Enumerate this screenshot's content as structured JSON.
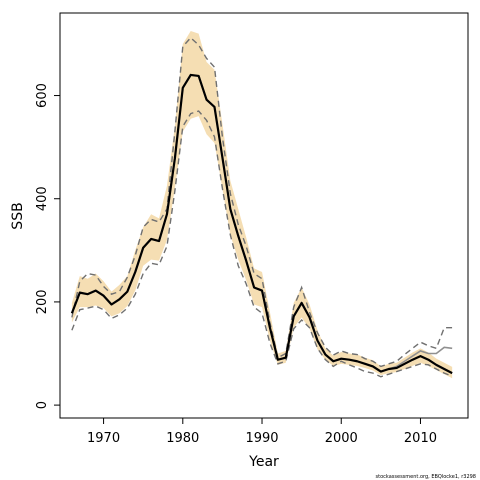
{
  "chart_data": {
    "type": "line",
    "title": "",
    "xlabel": "Year",
    "ylabel": "SSB",
    "xlim": [
      1964.5,
      2016
    ],
    "ylim": [
      -25,
      760
    ],
    "x_ticks": [
      1970,
      1980,
      1990,
      2000,
      2010
    ],
    "y_ticks": [
      0,
      200,
      400,
      600
    ],
    "x_tick_labels": [
      "1970",
      "1980",
      "1990",
      "2000",
      "2010"
    ],
    "y_tick_labels": [
      "0",
      "200",
      "400",
      "600"
    ],
    "grid": false,
    "x": [
      1966,
      1967,
      1968,
      1969,
      1970,
      1971,
      1972,
      1973,
      1974,
      1975,
      1976,
      1977,
      1978,
      1979,
      1980,
      1981,
      1982,
      1983,
      1984,
      1985,
      1986,
      1987,
      1988,
      1989,
      1990,
      1991,
      1992,
      1993,
      1994,
      1995,
      1996,
      1997,
      1998,
      1999,
      2000,
      2001,
      2002,
      2003,
      2004,
      2005,
      2006,
      2007,
      2008,
      2009,
      2010,
      2011,
      2012,
      2013,
      2014
    ],
    "series": [
      {
        "role": "estimate",
        "values": [
          178,
          218,
          215,
          222,
          212,
          195,
          205,
          220,
          258,
          305,
          322,
          318,
          370,
          478,
          615,
          640,
          638,
          592,
          578,
          480,
          380,
          328,
          280,
          228,
          222,
          150,
          88,
          92,
          172,
          198,
          170,
          125,
          98,
          85,
          90,
          88,
          85,
          80,
          75,
          65,
          70,
          72,
          80,
          88,
          95,
          88,
          78,
          70,
          62
        ]
      },
      {
        "role": "confidence-band",
        "lower": [
          160,
          190,
          190,
          193,
          188,
          172,
          178,
          192,
          222,
          270,
          282,
          280,
          320,
          420,
          530,
          555,
          560,
          525,
          508,
          420,
          330,
          282,
          242,
          195,
          190,
          125,
          78,
          82,
          150,
          170,
          148,
          108,
          88,
          76,
          80,
          78,
          76,
          72,
          67,
          58,
          62,
          64,
          70,
          76,
          82,
          76,
          68,
          60,
          52
        ],
        "upper": [
          198,
          250,
          245,
          255,
          240,
          220,
          233,
          250,
          300,
          345,
          370,
          362,
          425,
          540,
          700,
          725,
          720,
          665,
          650,
          545,
          435,
          380,
          325,
          265,
          258,
          180,
          100,
          105,
          198,
          228,
          195,
          145,
          110,
          96,
          103,
          100,
          98,
          92,
          87,
          75,
          80,
          82,
          92,
          102,
          110,
          102,
          90,
          82,
          74
        ]
      },
      {
        "role": "dashed-bound-lower",
        "values": [
          145,
          185,
          188,
          192,
          185,
          168,
          175,
          188,
          215,
          255,
          275,
          272,
          308,
          415,
          540,
          565,
          570,
          552,
          520,
          420,
          330,
          270,
          235,
          190,
          178,
          120,
          80,
          85,
          148,
          165,
          150,
          110,
          88,
          75,
          85,
          78,
          72,
          65,
          62,
          55,
          60,
          65,
          70,
          75,
          80,
          78,
          70,
          62,
          56
        ]
      },
      {
        "role": "dashed-bound-upper",
        "values": [
          170,
          240,
          255,
          252,
          230,
          215,
          220,
          248,
          290,
          345,
          360,
          355,
          380,
          530,
          695,
          712,
          698,
          672,
          655,
          520,
          410,
          350,
          308,
          255,
          245,
          160,
          92,
          100,
          190,
          228,
          180,
          140,
          112,
          97,
          105,
          100,
          98,
          90,
          85,
          75,
          80,
          85,
          98,
          110,
          122,
          115,
          110,
          150,
          150
        ]
      },
      {
        "role": "alternate-run",
        "values": [
          178,
          218,
          215,
          222,
          212,
          195,
          205,
          220,
          258,
          305,
          322,
          318,
          370,
          478,
          615,
          640,
          638,
          592,
          578,
          480,
          380,
          328,
          280,
          228,
          222,
          150,
          88,
          92,
          172,
          198,
          170,
          125,
          98,
          85,
          90,
          88,
          85,
          80,
          75,
          65,
          70,
          75,
          85,
          95,
          105,
          100,
          100,
          112,
          110
        ]
      }
    ],
    "footnote": "stockassessment.org, EBQlocke1, r3298",
    "colors": {
      "band": "#f5deb3",
      "estimate": "#000000",
      "dashed": "#707070",
      "alternate": "#909090",
      "frame": "#000000"
    }
  }
}
